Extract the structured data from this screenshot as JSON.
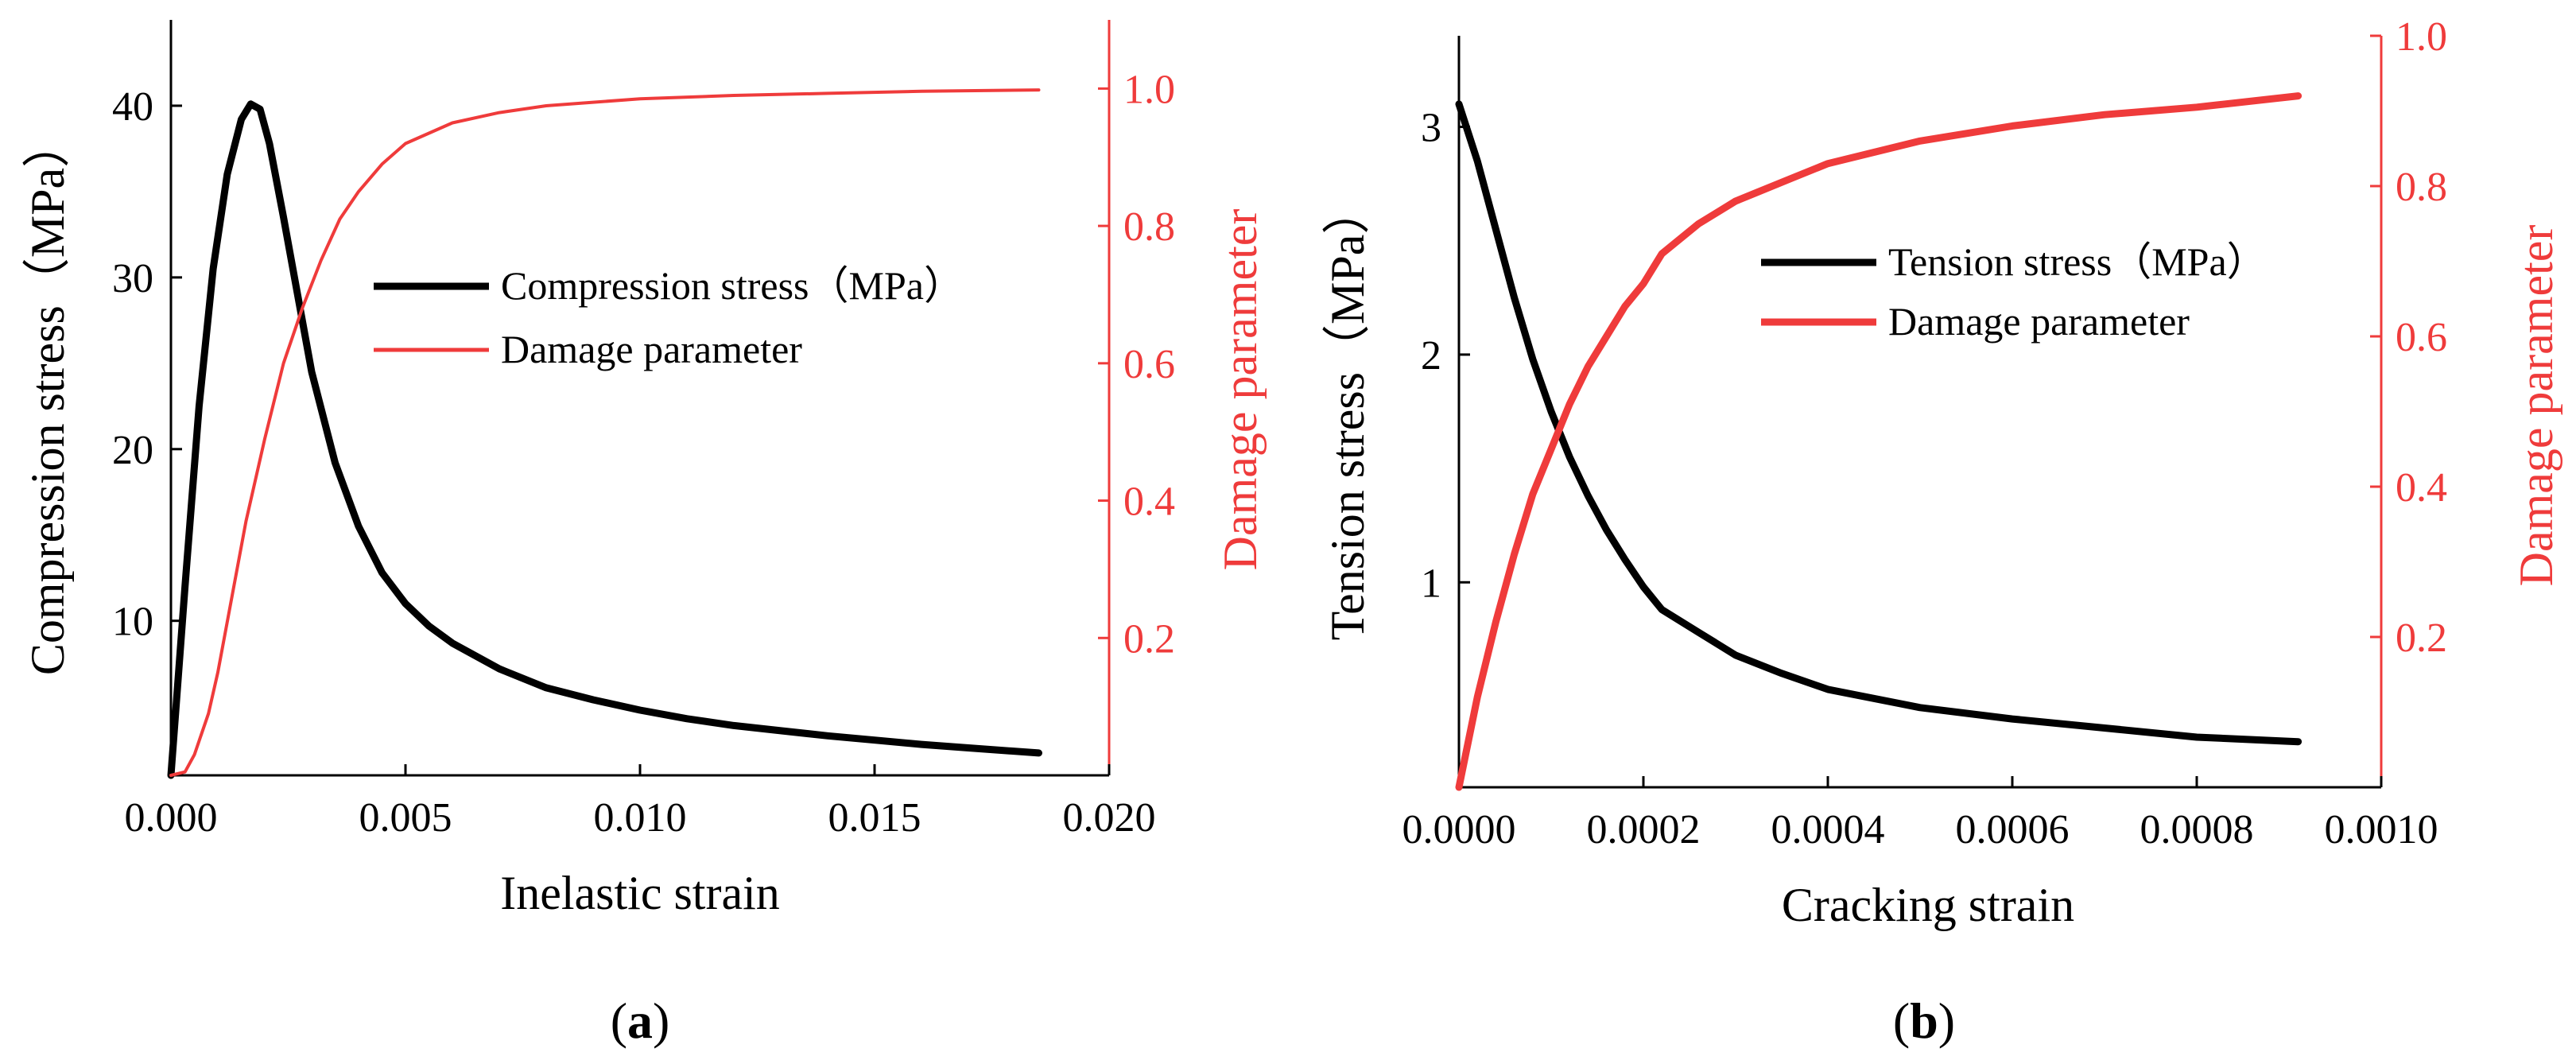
{
  "colors": {
    "stress": "#000000",
    "damage": "#ef3b3b",
    "axis": "#000000"
  },
  "chart_data": [
    {
      "type": "line",
      "panel_label": "a",
      "xlabel": "Inelastic strain",
      "ylabel": "Compression stress（MPa）",
      "y2label": "Damage parameter",
      "xlim": [
        0,
        0.02
      ],
      "ylim": [
        1,
        45
      ],
      "y2lim": [
        0,
        1.1
      ],
      "xticks": [
        0,
        0.005,
        0.01,
        0.015,
        0.02
      ],
      "xtick_labels": [
        "0.000",
        "0.005",
        "0.010",
        "0.015",
        "0.020"
      ],
      "yticks": [
        10,
        20,
        30,
        40
      ],
      "ytick_labels": [
        "10",
        "20",
        "30",
        "40"
      ],
      "y2ticks": [
        0.2,
        0.4,
        0.6,
        0.8,
        1.0
      ],
      "y2tick_labels": [
        "0.2",
        "0.4",
        "0.6",
        "0.8",
        "1.0"
      ],
      "legend_position": "middle-right",
      "series": [
        {
          "name": "Compression stress（MPa）",
          "axis": "left",
          "x": [
            0,
            0.0003,
            0.0006,
            0.0009,
            0.0012,
            0.0015,
            0.0017,
            0.0019,
            0.0021,
            0.0024,
            0.0027,
            0.003,
            0.0035,
            0.004,
            0.0045,
            0.005,
            0.0055,
            0.006,
            0.007,
            0.008,
            0.009,
            0.01,
            0.011,
            0.012,
            0.013,
            0.014,
            0.015,
            0.016,
            0.017,
            0.0185
          ],
          "values": [
            1,
            12,
            22.5,
            30.5,
            36,
            39.2,
            40.1,
            39.8,
            37.8,
            33.5,
            29,
            24.5,
            19.2,
            15.5,
            12.8,
            11,
            9.7,
            8.7,
            7.2,
            6.1,
            5.4,
            4.8,
            4.3,
            3.9,
            3.6,
            3.3,
            3.05,
            2.8,
            2.6,
            2.3
          ]
        },
        {
          "name": "Damage parameter",
          "axis": "right",
          "x": [
            0,
            0.0003,
            0.0005,
            0.0008,
            0.001,
            0.0013,
            0.0016,
            0.002,
            0.0024,
            0.0028,
            0.0032,
            0.0036,
            0.004,
            0.0045,
            0.005,
            0.006,
            0.007,
            0.008,
            0.009,
            0.01,
            0.012,
            0.014,
            0.016,
            0.0185
          ],
          "values": [
            0,
            0.005,
            0.03,
            0.09,
            0.15,
            0.26,
            0.37,
            0.49,
            0.6,
            0.68,
            0.75,
            0.81,
            0.85,
            0.89,
            0.92,
            0.95,
            0.965,
            0.975,
            0.98,
            0.985,
            0.99,
            0.993,
            0.996,
            0.998
          ]
        }
      ]
    },
    {
      "type": "line",
      "panel_label": "b",
      "xlabel": "Cracking strain",
      "ylabel": "Tension stress（MPa）",
      "y2label": "Damage parameter",
      "xlim": [
        0,
        0.001
      ],
      "ylim": [
        0.1,
        3.4
      ],
      "y2lim": [
        0,
        1.0
      ],
      "xticks": [
        0,
        0.0002,
        0.0004,
        0.0006,
        0.0008,
        0.001
      ],
      "xtick_labels": [
        "0.0000",
        "0.0002",
        "0.0004",
        "0.0006",
        "0.0008",
        "0.0010"
      ],
      "yticks": [
        1,
        2,
        3
      ],
      "ytick_labels": [
        "1",
        "2",
        "3"
      ],
      "y2ticks": [
        0.2,
        0.4,
        0.6,
        0.8,
        1.0
      ],
      "y2tick_labels": [
        "0.2",
        "0.4",
        "0.6",
        "0.8",
        "1.0"
      ],
      "legend_position": "upper-right",
      "series": [
        {
          "name": "Tension stress（MPa）",
          "axis": "left",
          "x": [
            0,
            2e-05,
            4e-05,
            6e-05,
            8e-05,
            0.0001,
            0.00012,
            0.00014,
            0.00016,
            0.00018,
            0.0002,
            0.00022,
            0.00026,
            0.0003,
            0.00035,
            0.0004,
            0.0005,
            0.0006,
            0.0007,
            0.0008,
            0.00091
          ],
          "values": [
            3.1,
            2.85,
            2.55,
            2.25,
            1.98,
            1.75,
            1.55,
            1.38,
            1.23,
            1.1,
            0.98,
            0.88,
            0.78,
            0.68,
            0.6,
            0.53,
            0.45,
            0.4,
            0.36,
            0.32,
            0.3
          ]
        },
        {
          "name": "Damage parameter",
          "axis": "right",
          "x": [
            0,
            2e-05,
            4e-05,
            6e-05,
            8e-05,
            0.0001,
            0.00012,
            0.00014,
            0.00016,
            0.00018,
            0.0002,
            0.00022,
            0.00026,
            0.0003,
            0.00032,
            0.00036,
            0.0004,
            0.0005,
            0.0006,
            0.0007,
            0.0008,
            0.00091
          ],
          "values": [
            0,
            0.12,
            0.22,
            0.31,
            0.39,
            0.45,
            0.51,
            0.56,
            0.6,
            0.64,
            0.67,
            0.71,
            0.75,
            0.78,
            0.79,
            0.81,
            0.83,
            0.86,
            0.88,
            0.895,
            0.905,
            0.92
          ]
        }
      ]
    }
  ]
}
